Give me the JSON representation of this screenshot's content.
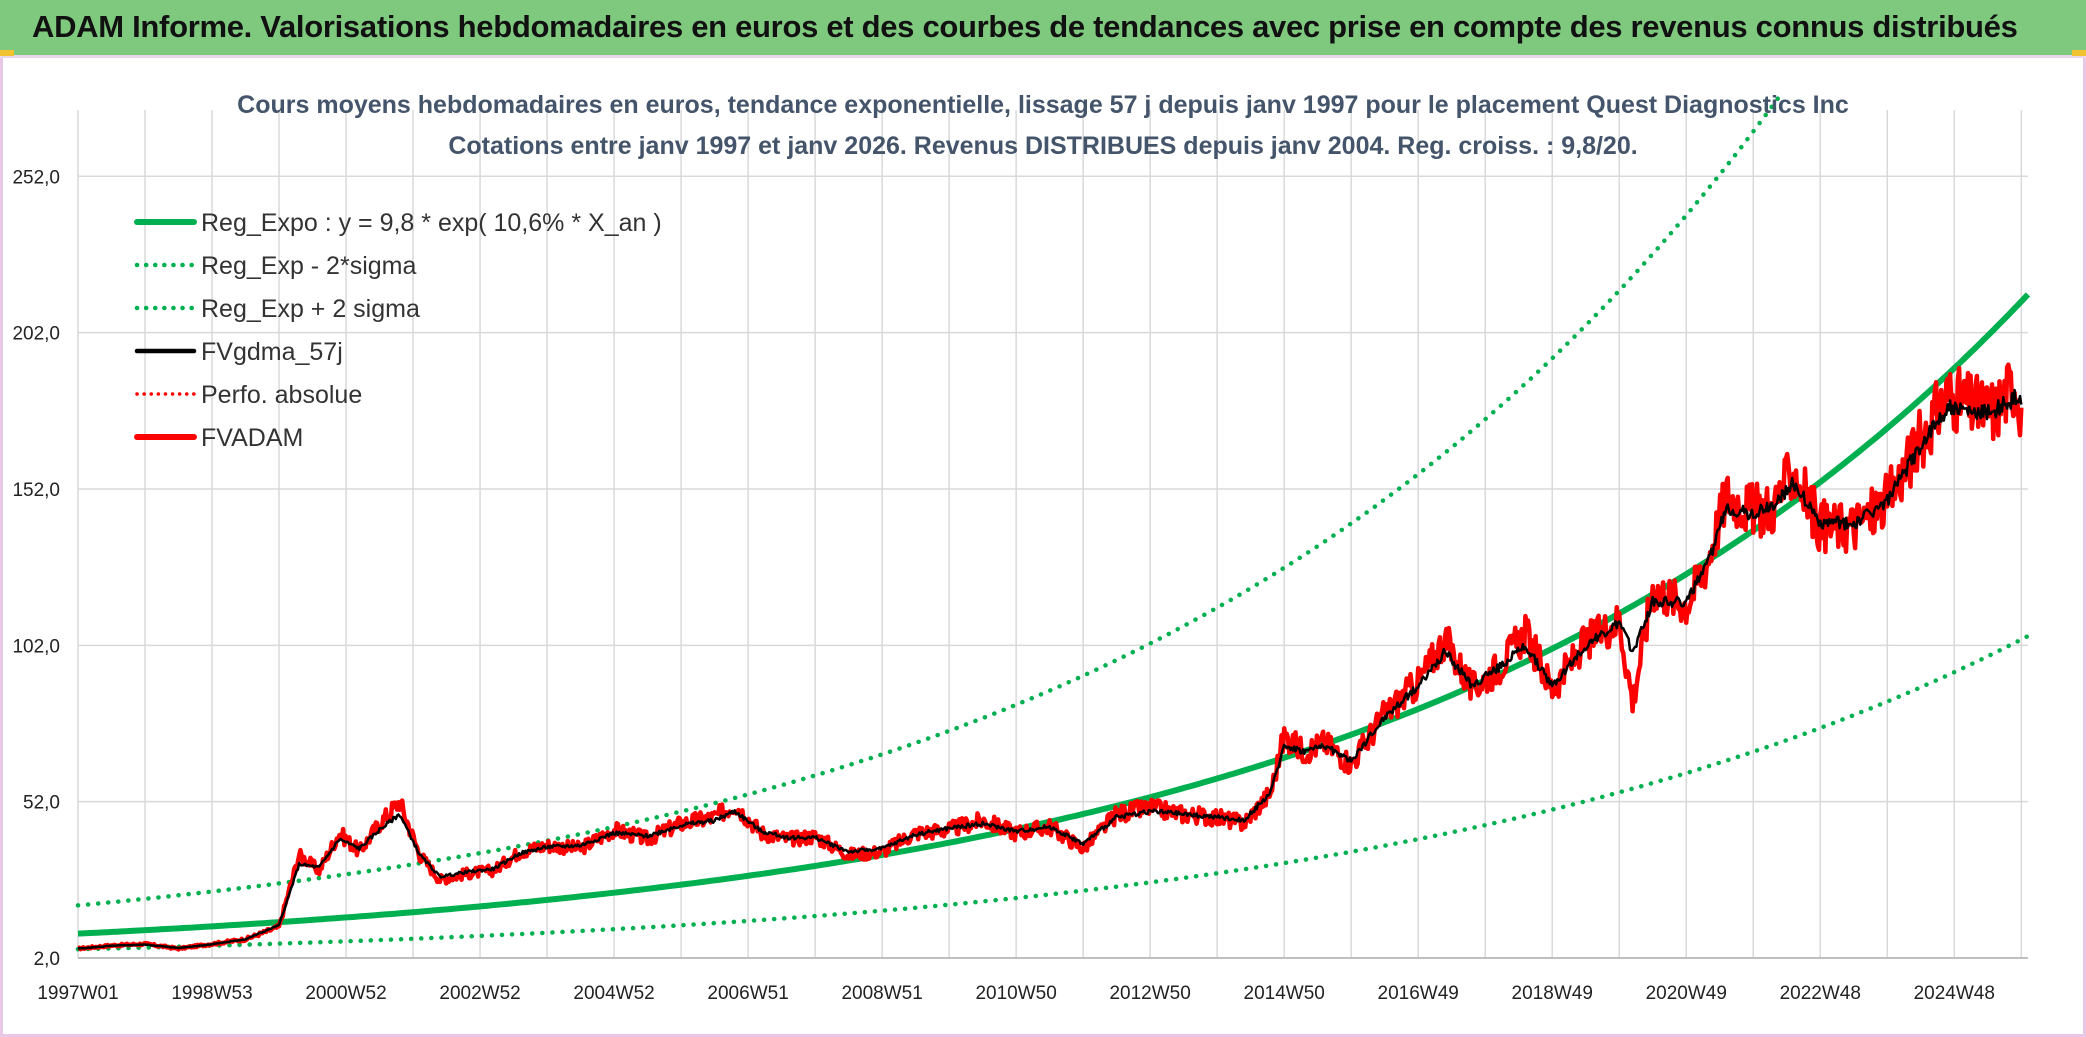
{
  "header": {
    "title": "ADAM Informe. Valorisations hebdomadaires en euros et des courbes de tendances avec prise en compte des revenus connus distribués"
  },
  "colors": {
    "banner": "#7fc97f",
    "trend": "#00b050",
    "fvadam": "#ff0000",
    "fvgdma": "#000000",
    "grid": "#d9d9d9",
    "subtitle": "#44546a"
  },
  "chart_data": {
    "type": "line",
    "title_line1": "Cours moyens hebdomadaires en euros, tendance exponentielle, lissage 57 j depuis janv 1997 pour le placement Quest Diagnostics Inc",
    "title_line2": "Cotations entre janv 1997 et janv 2026. Revenus DISTRIBUES depuis janv 2004. Reg. croiss. : 9,8/20.",
    "xlabel": "",
    "ylabel": "",
    "xlim": [
      1997.0,
      2026.1
    ],
    "ylim": [
      2.0,
      270.0
    ],
    "y_ticks": [
      2.0,
      52.0,
      102.0,
      152.0,
      202.0,
      252.0
    ],
    "y_tick_labels": [
      "2,0",
      "52,0",
      "102,0",
      "152,0",
      "202,0",
      "252,0"
    ],
    "x_ticks": [
      1997.0,
      1999.0,
      2001.0,
      2003.0,
      2005.0,
      2007.0,
      2009.0,
      2011.0,
      2013.0,
      2015.0,
      2017.0,
      2019.0,
      2021.0,
      2023.0,
      2025.0
    ],
    "x_tick_labels": [
      "1997W01",
      "1998W53",
      "2000W52",
      "2002W52",
      "2004W52",
      "2006W51",
      "2008W51",
      "2010W50",
      "2012W50",
      "2014W50",
      "2016W49",
      "2018W49",
      "2020W49",
      "2022W48",
      "2024W48"
    ],
    "grid": true,
    "legend_position": "top-left",
    "legend": [
      {
        "name": "Reg_Expo : y = 9,8 * exp( 10,6% *  X_an )",
        "style": "solid-green"
      },
      {
        "name": "Reg_Exp - 2*sigma",
        "style": "dotted-green"
      },
      {
        "name": "Reg_Exp + 2 sigma",
        "style": "dotted-green"
      },
      {
        "name": "FVgdma_57j",
        "style": "solid-black"
      },
      {
        "name": "Perfo. absolue",
        "style": "dotted-red"
      },
      {
        "name": "FVADAM",
        "style": "solid-red"
      }
    ],
    "trend": {
      "a": 9.8,
      "b": 0.106,
      "lower_factor": 0.49,
      "upper_factor": 1.92
    },
    "series": [
      {
        "name": "FVADAM",
        "x": [
          1997.0,
          1997.5,
          1998.0,
          1998.5,
          1999.0,
          1999.5,
          2000.0,
          2000.3,
          2000.6,
          2000.9,
          2001.2,
          2001.5,
          2001.8,
          2002.1,
          2002.4,
          2002.8,
          2003.2,
          2003.6,
          2004.0,
          2004.5,
          2005.0,
          2005.5,
          2006.0,
          2006.5,
          2006.8,
          2007.2,
          2007.6,
          2008.0,
          2008.5,
          2009.0,
          2009.5,
          2010.0,
          2010.5,
          2011.0,
          2011.5,
          2012.0,
          2012.5,
          2013.0,
          2013.5,
          2014.0,
          2014.4,
          2014.8,
          2015.0,
          2015.3,
          2015.6,
          2016.0,
          2016.5,
          2017.0,
          2017.4,
          2017.8,
          2018.2,
          2018.6,
          2019.0,
          2019.5,
          2020.0,
          2020.2,
          2020.5,
          2021.0,
          2021.3,
          2021.6,
          2022.0,
          2022.3,
          2022.6,
          2023.0,
          2023.5,
          2024.0,
          2024.5,
          2024.9,
          2025.3,
          2025.6,
          2025.9,
          2026.0
        ],
        "y": [
          5.0,
          6.0,
          6.5,
          5.0,
          6.5,
          8.0,
          12.0,
          35.0,
          30.0,
          42.0,
          36.0,
          45.0,
          52.0,
          35.0,
          27.0,
          29.0,
          30.0,
          36.0,
          38.0,
          37.0,
          43.0,
          40.0,
          45.0,
          47.0,
          51.0,
          42.0,
          40.0,
          41.0,
          35.0,
          36.0,
          42.0,
          43.0,
          46.0,
          42.0,
          44.0,
          37.0,
          48.0,
          50.0,
          48.0,
          47.0,
          45.0,
          55.0,
          73.0,
          68.0,
          71.0,
          64.0,
          80.0,
          90.0,
          104.0,
          88.0,
          95.0,
          106.0,
          88.0,
          103.0,
          110.0,
          84.0,
          120.0,
          115.0,
          128.0,
          150.0,
          145.0,
          146.0,
          158.0,
          140.0,
          140.0,
          148.0,
          168.0,
          182.0,
          178.0,
          177.0,
          186.0,
          178.0
        ]
      },
      {
        "name": "FVgdma_57j",
        "x": [
          1997.0,
          1997.5,
          1998.0,
          1998.5,
          1999.0,
          1999.5,
          2000.0,
          2000.3,
          2000.6,
          2000.9,
          2001.2,
          2001.5,
          2001.8,
          2002.1,
          2002.4,
          2002.8,
          2003.2,
          2003.6,
          2004.0,
          2004.5,
          2005.0,
          2005.5,
          2006.0,
          2006.5,
          2006.8,
          2007.2,
          2007.6,
          2008.0,
          2008.5,
          2009.0,
          2009.5,
          2010.0,
          2010.5,
          2011.0,
          2011.5,
          2012.0,
          2012.5,
          2013.0,
          2013.5,
          2014.0,
          2014.4,
          2014.8,
          2015.0,
          2015.3,
          2015.6,
          2016.0,
          2016.5,
          2017.0,
          2017.4,
          2017.8,
          2018.2,
          2018.6,
          2019.0,
          2019.5,
          2020.0,
          2020.2,
          2020.5,
          2021.0,
          2021.3,
          2021.6,
          2022.0,
          2022.3,
          2022.6,
          2023.0,
          2023.5,
          2024.0,
          2024.5,
          2024.9,
          2025.3,
          2025.6,
          2025.9,
          2026.0
        ],
        "y": [
          5.0,
          5.9,
          6.3,
          5.2,
          6.4,
          8.0,
          12.5,
          32.0,
          31.0,
          40.0,
          37.0,
          43.0,
          48.0,
          35.0,
          28.0,
          29.5,
          30.5,
          35.5,
          37.5,
          38.0,
          42.0,
          41.0,
          44.5,
          46.0,
          49.0,
          42.5,
          40.5,
          40.5,
          36.0,
          37.0,
          41.5,
          43.5,
          45.0,
          42.5,
          44.0,
          38.5,
          47.0,
          49.0,
          48.0,
          47.0,
          46.0,
          55.0,
          70.0,
          68.0,
          70.0,
          65.0,
          79.0,
          89.0,
          100.0,
          89.0,
          95.0,
          102.0,
          89.0,
          102.0,
          109.0,
          100.0,
          116.0,
          116.0,
          127.0,
          146.0,
          144.0,
          147.0,
          154.0,
          141.0,
          141.0,
          148.0,
          166.0,
          178.0,
          176.0,
          177.0,
          181.0,
          179.0
        ]
      }
    ]
  }
}
